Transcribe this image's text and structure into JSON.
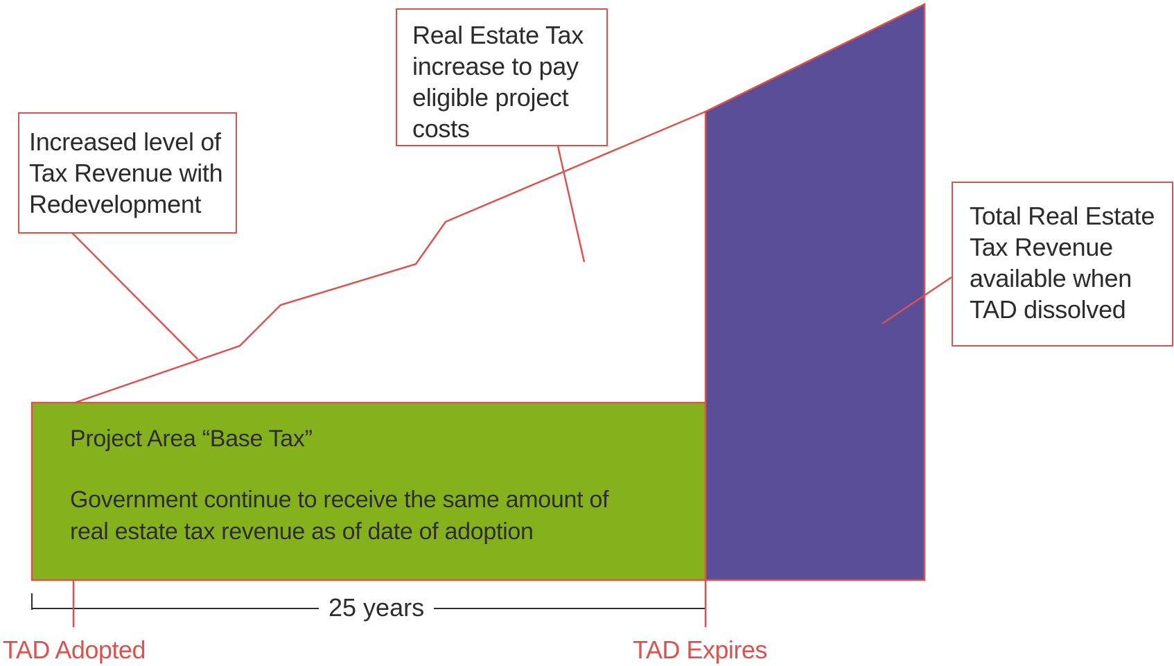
{
  "callouts": {
    "increased_revenue": "Increased level of\nTax Revenue with\nRedevelopment",
    "increase_to_pay": "Real Estate Tax\nincrease to pay\neligible project\ncosts",
    "total_revenue": "Total Real Estate\nTax Revenue\navailable when\nTAD dissolved"
  },
  "base_tax": {
    "title": "Project Area “Base Tax”",
    "description": "Government continue to receive the same amount of\nreal estate tax revenue as of date of adoption"
  },
  "timeline": {
    "duration": "25 years",
    "start_label": "TAD Adopted",
    "end_label": "TAD Expires"
  },
  "colors": {
    "base_fill": "#85b21c",
    "post_fill": "#5b4e98",
    "accent": "#d9534f",
    "text": "#2d2d2d"
  }
}
